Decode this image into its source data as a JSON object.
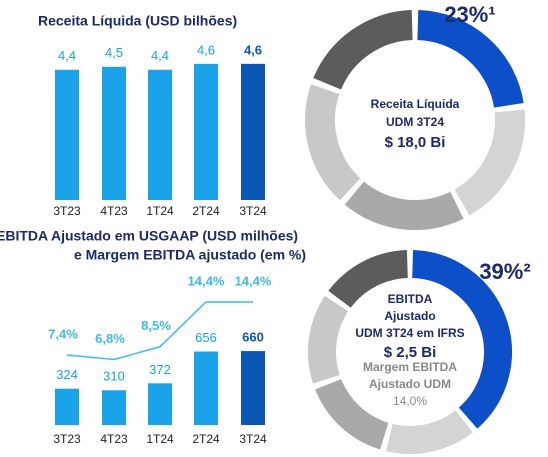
{
  "chart_data": [
    {
      "type": "bar",
      "title": "Receita Líquida (USD bilhões)",
      "categories": [
        "3T23",
        "4T23",
        "1T24",
        "2T24",
        "3T24"
      ],
      "values": [
        4.4,
        4.5,
        4.4,
        4.6,
        4.6
      ],
      "value_labels": [
        "4,4",
        "4,5",
        "4,4",
        "4,6",
        "4,6"
      ],
      "color": "#1aa3e8",
      "highlight_color": "#0b57b8"
    },
    {
      "type": "bar_line",
      "title": [
        "EBITDA Ajustado em USGAAP (USD milhões)",
        "e Margem EBITDA ajustado (em %)"
      ],
      "categories": [
        "3T23",
        "4T23",
        "1T24",
        "2T24",
        "3T24"
      ],
      "values": [
        324,
        310,
        372,
        656,
        660
      ],
      "line_values": [
        7.4,
        6.8,
        8.5,
        14.4,
        14.4
      ],
      "line_value_labels": [
        "7,4%",
        "6,8%",
        "8,5%",
        "14,4%",
        "14,4%"
      ],
      "color": "#1aa3e8",
      "highlight_color": "#0b57b8",
      "line_color": "#3fb8ee"
    },
    {
      "type": "donut",
      "values": [
        23
      ],
      "value_labels": [
        "23%¹"
      ],
      "center_text": [
        "Receita Líquida",
        "UDM 3T24",
        "$ 18,0 Bi"
      ],
      "color": "#0d4fc9"
    },
    {
      "type": "donut",
      "values": [
        39
      ],
      "value_labels": [
        "39%²"
      ],
      "center_text": [
        "EBITDA",
        "Ajustado",
        "UDM 3T24 em IFRS",
        "$ 2,5 Bi",
        "Margem EBITDA",
        "Ajustado UDM",
        "14,0%"
      ],
      "color": "#0d4fc9"
    }
  ]
}
